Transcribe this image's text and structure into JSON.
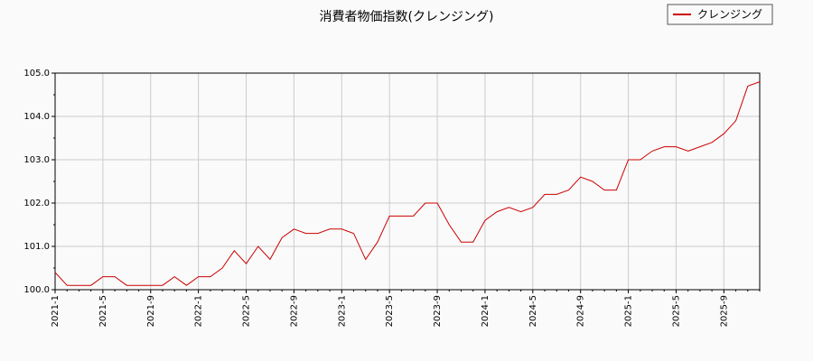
{
  "chart_data": {
    "type": "line",
    "title": "消費者物価指数(クレンジング)",
    "xlabel": "",
    "ylabel": "",
    "ylim": [
      100.0,
      105.0
    ],
    "yticks": [
      "100.0",
      "101.0",
      "102.0",
      "103.0",
      "104.0",
      "105.0"
    ],
    "xticks": [
      "2021-1",
      "2021-5",
      "2021-9",
      "2022-1",
      "2022-5",
      "2022-9",
      "2023-1",
      "2023-5",
      "2023-9",
      "2024-1",
      "2024-5",
      "2024-9",
      "2025-1",
      "2025-5",
      "2025-9"
    ],
    "grid": true,
    "legend_position": "top-right",
    "series": [
      {
        "name": "クレンジング",
        "color": "#cc0000",
        "x": [
          "2021-1",
          "2021-2",
          "2021-3",
          "2021-4",
          "2021-5",
          "2021-6",
          "2021-7",
          "2021-8",
          "2021-9",
          "2021-10",
          "2021-11",
          "2021-12",
          "2022-1",
          "2022-2",
          "2022-3",
          "2022-4",
          "2022-5",
          "2022-6",
          "2022-7",
          "2022-8",
          "2022-9",
          "2022-10",
          "2022-11",
          "2022-12",
          "2023-1",
          "2023-2",
          "2023-3",
          "2023-4",
          "2023-5",
          "2023-6",
          "2023-7",
          "2023-8",
          "2023-9",
          "2023-10",
          "2023-11",
          "2023-12",
          "2024-1",
          "2024-2",
          "2024-3",
          "2024-4",
          "2024-5",
          "2024-6",
          "2024-7",
          "2024-8",
          "2024-9",
          "2024-10",
          "2024-11",
          "2024-12",
          "2025-1",
          "2025-2",
          "2025-3",
          "2025-4",
          "2025-5",
          "2025-6",
          "2025-7",
          "2025-8",
          "2025-9",
          "2025-10",
          "2025-11",
          "2025-12"
        ],
        "values": [
          100.4,
          100.1,
          100.1,
          100.1,
          100.3,
          100.3,
          100.1,
          100.1,
          100.1,
          100.1,
          100.3,
          100.1,
          100.3,
          100.3,
          100.5,
          100.9,
          100.6,
          101.0,
          100.7,
          101.2,
          101.4,
          101.3,
          101.3,
          101.4,
          101.4,
          101.3,
          100.7,
          101.1,
          101.7,
          101.7,
          101.7,
          102.0,
          102.0,
          101.5,
          101.1,
          101.1,
          101.6,
          101.8,
          101.9,
          101.8,
          101.9,
          102.2,
          102.2,
          102.3,
          102.6,
          102.5,
          102.3,
          102.3,
          103.0,
          103.0,
          103.2,
          103.3,
          103.3,
          103.2,
          103.3,
          103.4,
          103.6,
          103.9,
          104.7,
          104.8
        ]
      }
    ]
  }
}
